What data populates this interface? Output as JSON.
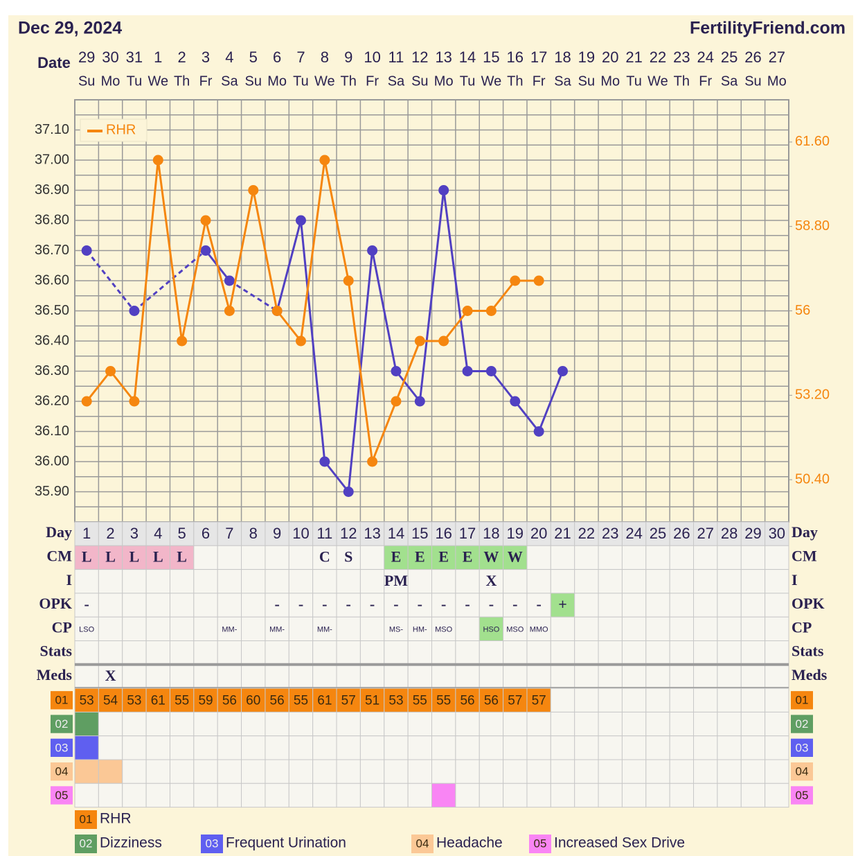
{
  "header": {
    "date": "Dec 29, 2024",
    "site": "FertilityFriend.com",
    "date_label": "Date"
  },
  "chart_data": {
    "type": "line",
    "dates": [
      29,
      30,
      31,
      1,
      2,
      3,
      4,
      5,
      6,
      7,
      8,
      9,
      10,
      11,
      12,
      13,
      14,
      15,
      16,
      17,
      18,
      19,
      20,
      21,
      22,
      23,
      24,
      25,
      26,
      27
    ],
    "weekdays": [
      "Su",
      "Mo",
      "Tu",
      "We",
      "Th",
      "Fr",
      "Sa",
      "Su",
      "Mo",
      "Tu",
      "We",
      "Th",
      "Fr",
      "Sa",
      "Su",
      "Mo",
      "Tu",
      "We",
      "Th",
      "Fr",
      "Sa",
      "Su",
      "Mo",
      "Tu",
      "We",
      "Th",
      "Fr",
      "Sa",
      "Su",
      "Mo"
    ],
    "day_label": "Day",
    "categories": [
      1,
      2,
      3,
      4,
      5,
      6,
      7,
      8,
      9,
      10,
      11,
      12,
      13,
      14,
      15,
      16,
      17,
      18,
      19,
      20,
      21,
      22,
      23,
      24,
      25,
      26,
      27,
      28,
      29,
      30
    ],
    "ylim": [
      35.8,
      37.2
    ],
    "yticks": [
      {
        "value": 35.9,
        "label": "35.90"
      },
      {
        "value": 36.0,
        "label": "36.00"
      },
      {
        "value": 36.1,
        "label": "36.10"
      },
      {
        "value": 36.2,
        "label": "36.20"
      },
      {
        "value": 36.3,
        "label": "36.30"
      },
      {
        "value": 36.4,
        "label": "36.40"
      },
      {
        "value": 36.5,
        "label": "36.50"
      },
      {
        "value": 36.6,
        "label": "36.60"
      },
      {
        "value": 36.7,
        "label": "36.70"
      },
      {
        "value": 36.8,
        "label": "36.80"
      },
      {
        "value": 36.9,
        "label": "36.90"
      },
      {
        "value": 37.0,
        "label": "37.00"
      },
      {
        "value": 37.1,
        "label": "37.10"
      }
    ],
    "y2lim": [
      49,
      63
    ],
    "y2ticks": [
      {
        "value": 50.4,
        "label": "50.40"
      },
      {
        "value": 53.2,
        "label": "53.20"
      },
      56,
      {
        "value": 58.8,
        "label": "58.80"
      },
      {
        "value": 61.6,
        "label": "61.60"
      }
    ],
    "grid": true,
    "legend": "top-left",
    "series": [
      {
        "color": "#5140c2",
        "values": [
          36.7,
          null,
          36.5,
          null,
          null,
          36.7,
          36.6,
          null,
          36.5,
          36.8,
          36.0,
          35.9,
          36.7,
          36.3,
          36.2,
          36.9,
          36.3,
          36.3,
          36.2,
          36.1,
          36.3,
          null,
          null,
          null,
          null,
          null,
          null,
          null,
          null,
          null
        ]
      },
      {
        "name": "RHR",
        "color": "#f5860f",
        "axis": "y2",
        "values": [
          53,
          54,
          53,
          61,
          55,
          59,
          56,
          60,
          56,
          55,
          61,
          57,
          51,
          53,
          55,
          55,
          56,
          56,
          57,
          57,
          null,
          null,
          null,
          null,
          null,
          null,
          null,
          null,
          null,
          null
        ]
      }
    ]
  },
  "rows": [
    {
      "label": "CM",
      "cells": [
        {
          "text": "L",
          "color": "#f2b6c9"
        },
        {
          "text": "L",
          "color": "#f2b6c9"
        },
        {
          "text": "L",
          "color": "#f2b6c9"
        },
        {
          "text": "L",
          "color": "#f2b6c9"
        },
        {
          "text": "L",
          "color": "#f2b6c9"
        },
        null,
        null,
        null,
        null,
        null,
        "C",
        "S",
        null,
        {
          "text": "E",
          "color": "#a2e08e"
        },
        {
          "text": "E",
          "color": "#a2e08e"
        },
        {
          "text": "E",
          "color": "#a2e08e"
        },
        {
          "text": "E",
          "color": "#a2e08e"
        },
        {
          "text": "W",
          "color": "#a2e08e"
        },
        {
          "text": "W",
          "color": "#a2e08e"
        },
        null,
        null,
        null,
        null,
        null,
        null,
        null,
        null,
        null,
        null,
        null
      ]
    },
    {
      "label": "I",
      "cells": [
        null,
        null,
        null,
        null,
        null,
        null,
        null,
        null,
        null,
        null,
        null,
        null,
        null,
        "PM",
        null,
        null,
        null,
        "X",
        null,
        null,
        null,
        null,
        null,
        null,
        null,
        null,
        null,
        null,
        null,
        null
      ]
    },
    {
      "label": "OPK",
      "cells": [
        "-",
        null,
        null,
        null,
        null,
        null,
        null,
        null,
        "-",
        "-",
        "-",
        "-",
        "-",
        "-",
        "-",
        "-",
        "-",
        "-",
        "-",
        "-",
        {
          "text": "+",
          "color": "#a2e08e"
        },
        null,
        null,
        null,
        null,
        null,
        null,
        null,
        null,
        null
      ]
    },
    {
      "label": "CP",
      "small": true,
      "cells": [
        "LSO",
        null,
        null,
        null,
        null,
        null,
        "MM-",
        null,
        "MM-",
        null,
        "MM-",
        null,
        null,
        "MS-",
        "HM-",
        "MSO",
        null,
        {
          "text": "HSO",
          "color": "#a2e08e"
        },
        "MSO",
        "MMO",
        null,
        null,
        null,
        null,
        null,
        null,
        null,
        null,
        null,
        null
      ]
    },
    {
      "label": "Stats",
      "cells": [
        null,
        null,
        null,
        null,
        null,
        null,
        null,
        null,
        null,
        null,
        null,
        null,
        null,
        null,
        null,
        null,
        null,
        null,
        null,
        null,
        null,
        null,
        null,
        null,
        null,
        null,
        null,
        null,
        null,
        null
      ]
    },
    {
      "label": "Meds",
      "cells": [
        null,
        "X",
        null,
        null,
        null,
        null,
        null,
        null,
        null,
        null,
        null,
        null,
        null,
        null,
        null,
        null,
        null,
        null,
        null,
        null,
        null,
        null,
        null,
        null,
        null,
        null,
        null,
        null,
        null,
        null
      ]
    }
  ],
  "symptoms": [
    {
      "code": "01",
      "name": "RHR",
      "color": "#f5860f",
      "text_color": "#3a2a10",
      "days": []
    },
    {
      "code": "02",
      "name": "Dizziness",
      "color": "#5f9e62",
      "text_color": "#eeeeee",
      "days": [
        1
      ]
    },
    {
      "code": "03",
      "name": "Frequent Urination",
      "color": "#5f5ff0",
      "text_color": "#eeeeee",
      "days": [
        1
      ]
    },
    {
      "code": "04",
      "name": "Headache",
      "color": "#fbc896",
      "text_color": "#3a2a10",
      "days": [
        1,
        2
      ]
    },
    {
      "code": "05",
      "name": "Increased Sex Drive",
      "color": "#f985f4",
      "text_color": "#3a2a10",
      "days": [
        16
      ]
    }
  ]
}
